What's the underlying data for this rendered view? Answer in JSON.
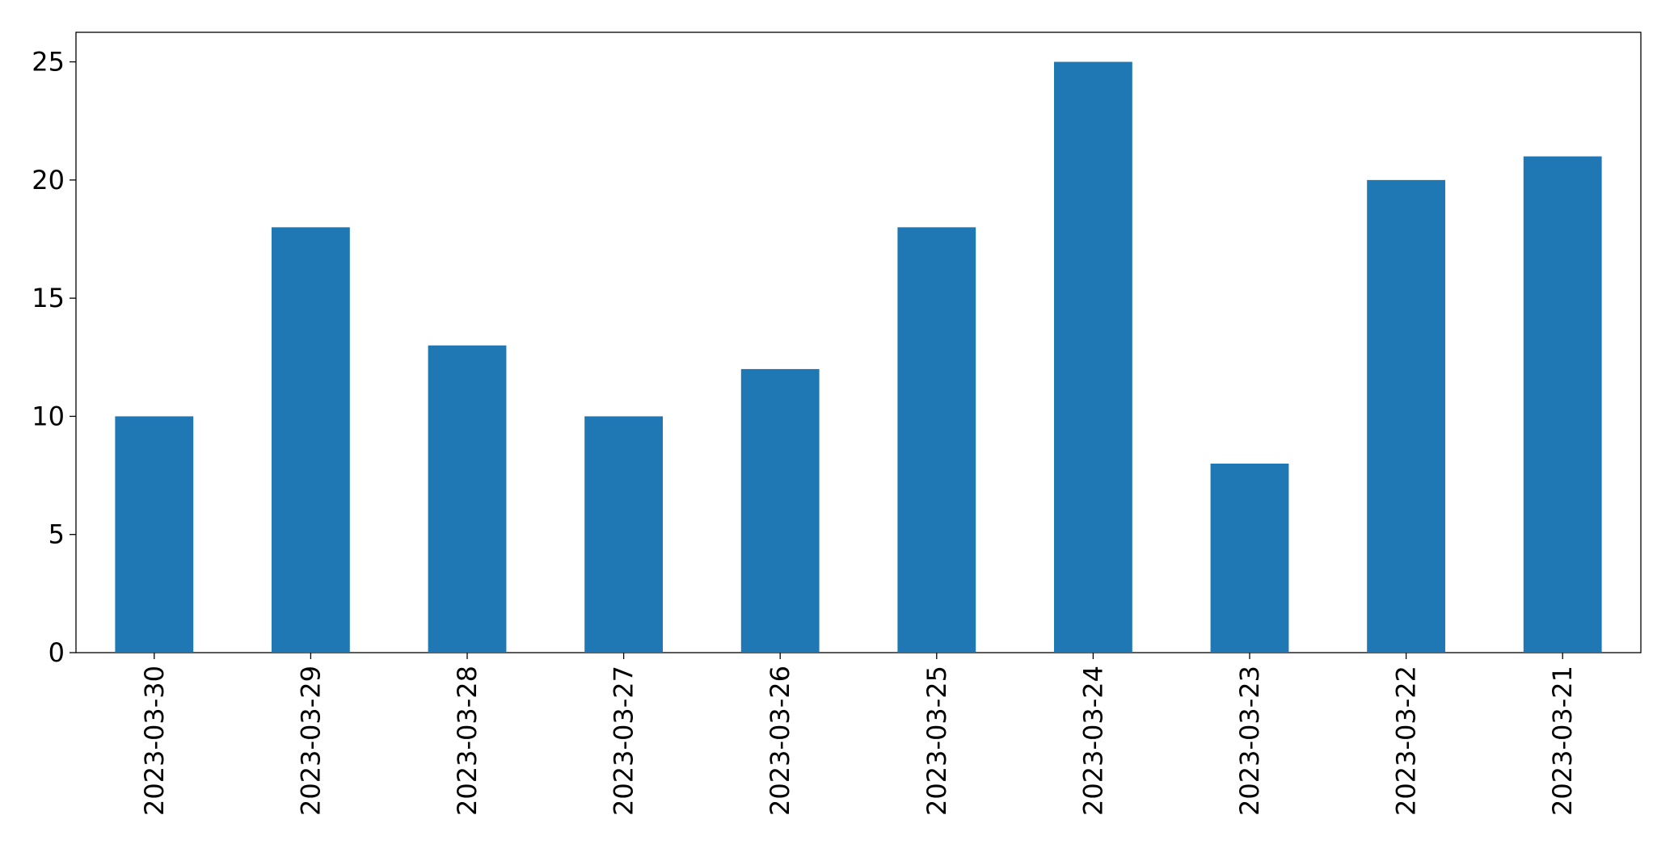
{
  "chart_data": {
    "type": "bar",
    "categories": [
      "2023-03-30",
      "2023-03-29",
      "2023-03-28",
      "2023-03-27",
      "2023-03-26",
      "2023-03-25",
      "2023-03-24",
      "2023-03-23",
      "2023-03-22",
      "2023-03-21"
    ],
    "values": [
      10,
      18,
      13,
      10,
      12,
      18,
      25,
      8,
      20,
      21
    ],
    "color": "#1f77b4",
    "ylim": [
      0,
      26.25
    ],
    "yticks": [
      0,
      5,
      10,
      15,
      20,
      25
    ],
    "grid": false
  }
}
